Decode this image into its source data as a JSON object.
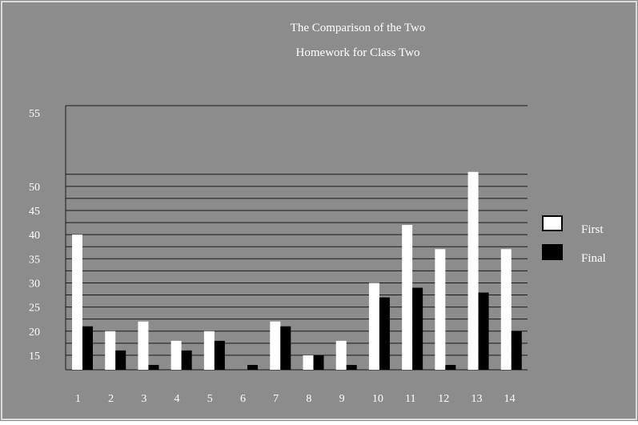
{
  "colors": {
    "background": "#8c8c8c",
    "frame": "#dcdcdc",
    "gridline": "#1a1a1a",
    "text": "#ffffff",
    "series_first": "#ffffff",
    "series_final": "#000000"
  },
  "chart_data": {
    "type": "bar",
    "title": "The Comparison of the Two",
    "subtitle": "Homework for Class Two",
    "categories": [
      "1",
      "2",
      "3",
      "4",
      "5",
      "6",
      "7",
      "8",
      "9",
      "10",
      "11",
      "12",
      "13",
      "14"
    ],
    "series": [
      {
        "name": "First",
        "color": "#ffffff",
        "values": [
          40,
          20,
          22,
          18,
          20,
          12,
          22,
          15,
          18,
          30,
          42,
          37,
          53,
          37
        ]
      },
      {
        "name": "Final",
        "color": "#000000",
        "values": [
          21,
          16,
          13,
          16,
          18,
          13,
          21,
          15,
          13,
          27,
          29,
          13,
          28,
          20
        ]
      }
    ],
    "y_ticks": [
      55,
      50,
      45,
      40,
      35,
      30,
      25,
      20,
      15
    ],
    "legend": {
      "placement": "right",
      "entries": [
        "First",
        "Final"
      ]
    },
    "grid": true
  }
}
